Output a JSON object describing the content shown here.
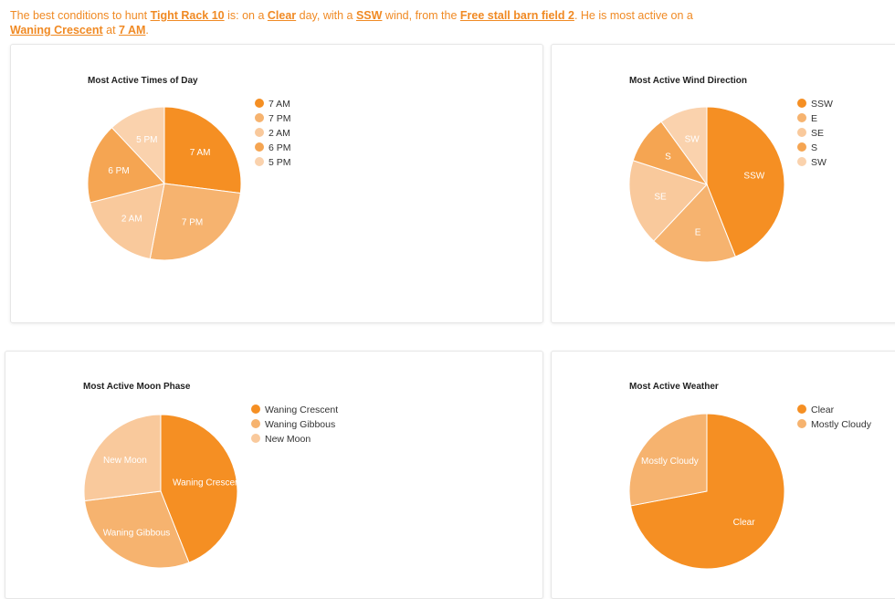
{
  "intro": {
    "t1": "The best conditions to hunt ",
    "l1": "Tight Rack 10",
    "t2": " is: on a ",
    "l2": "Clear",
    "t3": " day, with a ",
    "l3": "SSW",
    "t4": " wind, from the ",
    "l4": "Free stall barn field 2",
    "t5": ". He is most active on a ",
    "l5": "Waning Crescent",
    "t6": " at ",
    "l6": "7 AM",
    "t7": "."
  },
  "colors": {
    "accent": "#f08a24",
    "slices": [
      "#f58f23",
      "#f6b36f",
      "#f9c99c",
      "#f5a552",
      "#fad2ad"
    ]
  },
  "chart_data": [
    {
      "type": "pie",
      "title": "Most Active Times of Day",
      "categories": [
        "7 AM",
        "7 PM",
        "2 AM",
        "6 PM",
        "5 PM"
      ],
      "values": [
        27,
        26,
        18,
        17,
        12
      ],
      "legend": "right"
    },
    {
      "type": "pie",
      "title": "Most Active Wind Direction",
      "categories": [
        "SSW",
        "E",
        "SE",
        "S",
        "SW"
      ],
      "values": [
        44,
        18,
        18,
        10,
        10
      ],
      "legend": "right"
    },
    {
      "type": "pie",
      "title": "Most Active Moon Phase",
      "categories": [
        "Waning Crescent",
        "Waning Gibbous",
        "New Moon"
      ],
      "values": [
        44,
        29,
        27
      ],
      "legend": "right"
    },
    {
      "type": "pie",
      "title": "Most Active Weather",
      "categories": [
        "Clear",
        "Mostly Cloudy"
      ],
      "values": [
        72,
        28
      ],
      "legend": "right"
    }
  ]
}
